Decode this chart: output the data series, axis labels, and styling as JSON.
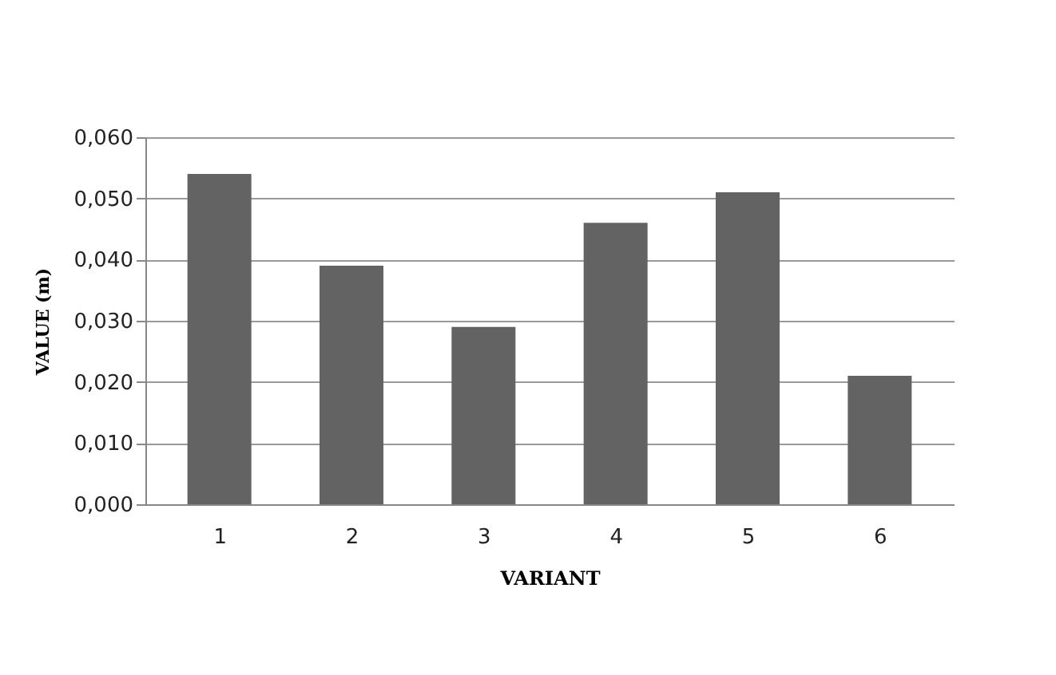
{
  "chart_data": {
    "type": "bar",
    "xlabel": "VARIANT",
    "ylabel": "VALUE  (m)",
    "categories": [
      "1",
      "2",
      "3",
      "4",
      "5",
      "6"
    ],
    "values": [
      0.054,
      0.039,
      0.029,
      0.046,
      0.051,
      0.021
    ],
    "color": "#636363",
    "ylim": [
      0,
      0.06
    ],
    "yticks": [
      {
        "value": 0,
        "label": "0,000"
      },
      {
        "value": 0.01,
        "label": "0,010"
      },
      {
        "value": 0.02,
        "label": "0,020"
      },
      {
        "value": 0.03,
        "label": "0,030"
      },
      {
        "value": 0.04,
        "label": "0,040"
      },
      {
        "value": 0.05,
        "label": "0,050"
      },
      {
        "value": 0.06,
        "label": "0,060"
      }
    ],
    "grid": "y"
  }
}
